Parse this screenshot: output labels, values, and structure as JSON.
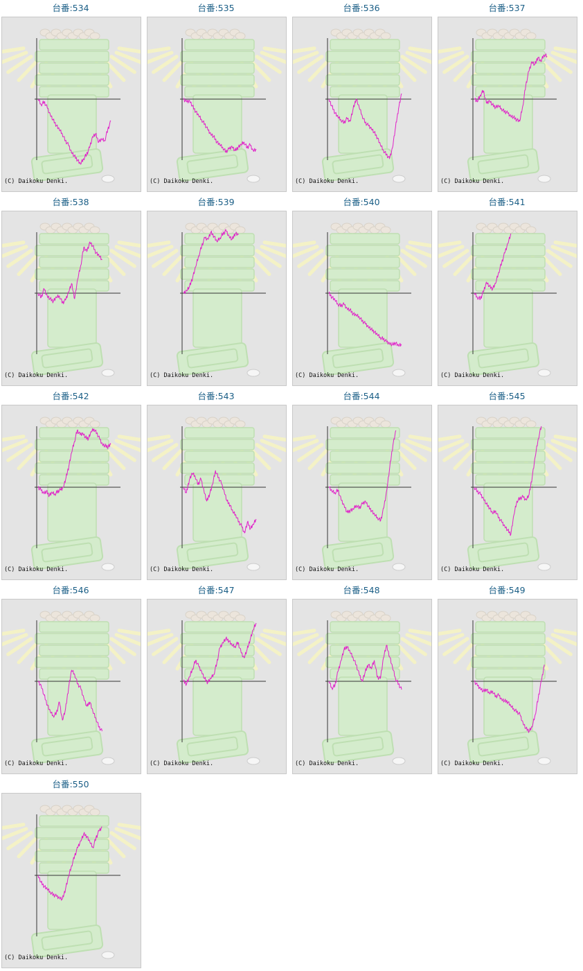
{
  "copyright": "(C) Daikoku Denki.",
  "line_color": "#e020c8",
  "chart_data": [
    {
      "type": "line",
      "title": "台番:534",
      "values": [
        0,
        -8,
        -4,
        -12,
        -22,
        -30,
        -38,
        -44,
        -50,
        -60,
        -66,
        -76,
        -82,
        -88,
        -94,
        -86,
        -80,
        -70,
        -54,
        -50,
        -62,
        -58,
        -60,
        -44,
        -32
      ]
    },
    {
      "type": "line",
      "title": "台番:535",
      "values": [
        0,
        -4,
        -2,
        -10,
        -18,
        -24,
        -30,
        -36,
        -44,
        -50,
        -54,
        -62,
        -66,
        -70,
        -76,
        -72,
        -68,
        -74,
        -70,
        -66,
        -62,
        -70,
        -66,
        -74,
        -72
      ]
    },
    {
      "type": "line",
      "title": "台番:536",
      "values": [
        0,
        -10,
        -20,
        -26,
        -30,
        -34,
        -28,
        -32,
        -14,
        0,
        -12,
        -24,
        -34,
        -38,
        -42,
        -48,
        -56,
        -66,
        -74,
        -80,
        -86,
        -70,
        -40,
        -14,
        8
      ]
    },
    {
      "type": "line",
      "title": "台番:537",
      "values": [
        0,
        -4,
        6,
        12,
        -6,
        -2,
        -8,
        -12,
        -10,
        -14,
        -18,
        -20,
        -24,
        -26,
        -30,
        -32,
        -10,
        20,
        40,
        54,
        50,
        60,
        54,
        64,
        62
      ]
    },
    {
      "type": "line",
      "title": "台番:538",
      "values": [
        0,
        -6,
        6,
        -4,
        -8,
        -12,
        -6,
        -4,
        -14,
        -10,
        2,
        14,
        -8,
        20,
        40,
        66,
        60,
        74,
        68,
        58,
        54,
        48
      ]
    },
    {
      "type": "line",
      "title": "台番:539",
      "values": [
        0,
        4,
        10,
        22,
        38,
        54,
        68,
        80,
        78,
        88,
        82,
        74,
        80,
        86,
        90,
        82,
        78,
        86,
        84
      ]
    },
    {
      "type": "line",
      "title": "台番:540",
      "values": [
        0,
        -6,
        -10,
        -16,
        -18,
        -16,
        -22,
        -24,
        -30,
        -32,
        -34,
        -40,
        -44,
        -48,
        -52,
        -56,
        -60,
        -64,
        -66,
        -70,
        -72,
        -74,
        -72,
        -76,
        -74
      ]
    },
    {
      "type": "line",
      "title": "台番:541",
      "values": [
        0,
        -6,
        -8,
        2,
        16,
        10,
        6,
        14,
        30,
        44,
        58,
        72,
        86
      ]
    },
    {
      "type": "line",
      "title": "台番:542",
      "values": [
        0,
        -4,
        -8,
        -6,
        -12,
        -8,
        -10,
        -6,
        -4,
        0,
        14,
        30,
        50,
        66,
        82,
        76,
        78,
        72,
        70,
        80,
        84,
        78,
        70,
        62,
        60,
        58,
        62
      ]
    },
    {
      "type": "line",
      "title": "台番:543",
      "values": [
        0,
        -8,
        10,
        20,
        16,
        4,
        12,
        -4,
        -20,
        -10,
        4,
        24,
        14,
        6,
        -6,
        -20,
        -26,
        -36,
        -40,
        -50,
        -56,
        -66,
        -50,
        -60,
        -54,
        -46
      ]
    },
    {
      "type": "line",
      "title": "台番:544",
      "values": [
        0,
        -6,
        -8,
        -4,
        -18,
        -26,
        -36,
        -34,
        -32,
        -26,
        -30,
        -24,
        -20,
        -28,
        -34,
        -40,
        -44,
        -48,
        -30,
        -4,
        30,
        60,
        82
      ]
    },
    {
      "type": "line",
      "title": "台番:545",
      "values": [
        0,
        -6,
        -10,
        -16,
        -24,
        -30,
        -38,
        -34,
        -44,
        -50,
        -56,
        -62,
        -68,
        -40,
        -20,
        -16,
        -14,
        -18,
        -10,
        14,
        44,
        70,
        88
      ]
    },
    {
      "type": "line",
      "title": "台番:546",
      "values": [
        0,
        -6,
        -20,
        -34,
        -44,
        -50,
        -46,
        -30,
        -56,
        -40,
        -10,
        16,
        10,
        -4,
        -10,
        -24,
        -36,
        -30,
        -44,
        -54,
        -66,
        -72
      ]
    },
    {
      "type": "line",
      "title": "台番:547",
      "values": [
        0,
        -4,
        6,
        18,
        30,
        22,
        14,
        4,
        -2,
        4,
        10,
        26,
        48,
        56,
        62,
        58,
        52,
        50,
        56,
        42,
        34,
        46,
        60,
        74,
        84
      ]
    },
    {
      "type": "line",
      "title": "台番:548",
      "values": [
        0,
        -10,
        -6,
        14,
        30,
        46,
        50,
        42,
        34,
        24,
        10,
        0,
        14,
        24,
        18,
        30,
        6,
        4,
        34,
        52,
        36,
        20,
        4,
        -4,
        -12
      ]
    },
    {
      "type": "line",
      "title": "台番:549",
      "values": [
        0,
        -6,
        -10,
        -14,
        -12,
        -18,
        -14,
        -22,
        -20,
        -26,
        -28,
        -30,
        -36,
        -40,
        -44,
        -48,
        -60,
        -68,
        -72,
        -66,
        -48,
        -24,
        0,
        24
      ]
    },
    {
      "type": "line",
      "title": "台番:550",
      "values": [
        0,
        -10,
        -16,
        -20,
        -24,
        -28,
        -30,
        -32,
        -34,
        -20,
        -2,
        14,
        28,
        40,
        50,
        60,
        56,
        48,
        40,
        54,
        64,
        70
      ]
    }
  ]
}
